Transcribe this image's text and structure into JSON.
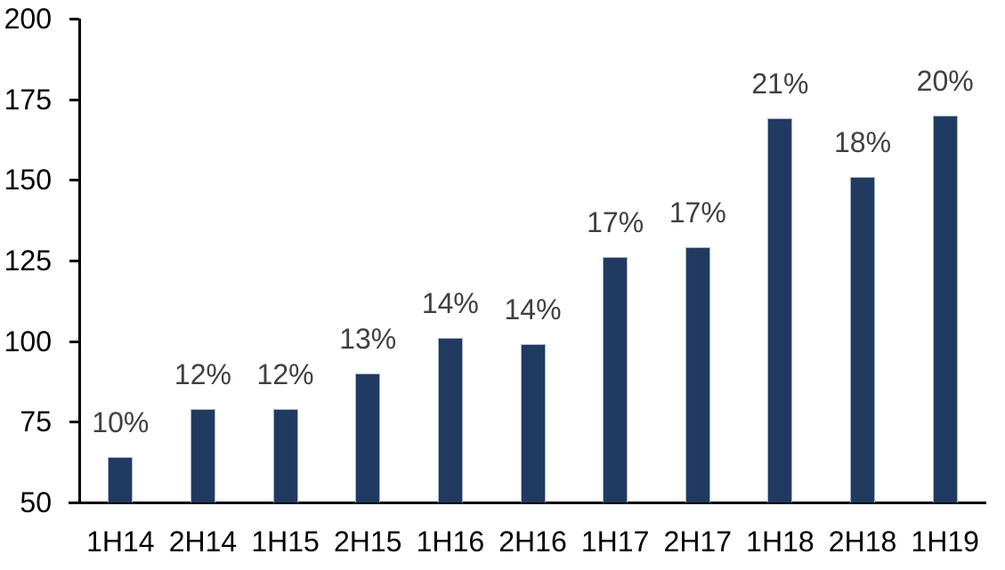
{
  "chart_data": {
    "type": "bar",
    "title": "",
    "xlabel": "",
    "ylabel": "",
    "categories": [
      "1H14",
      "2H14",
      "1H15",
      "2H15",
      "1H16",
      "2H16",
      "1H17",
      "2H17",
      "1H18",
      "2H18",
      "1H19"
    ],
    "values": [
      64,
      79,
      79,
      90,
      101,
      99,
      126,
      129,
      169,
      151,
      170
    ],
    "labels": [
      "10%",
      "12%",
      "12%",
      "13%",
      "14%",
      "14%",
      "17%",
      "17%",
      "21%",
      "18%",
      "20%"
    ],
    "ylim": [
      50,
      200
    ],
    "yticks": [
      200,
      175,
      150,
      125,
      100,
      75,
      50
    ],
    "grid": false,
    "legend": false,
    "colors": {
      "bar": "#213a61",
      "bar_edge": "#a9b4c9",
      "value_label": "#404040",
      "axis": "#000000",
      "tick_label": "#000000",
      "background": "#ffffff"
    }
  }
}
